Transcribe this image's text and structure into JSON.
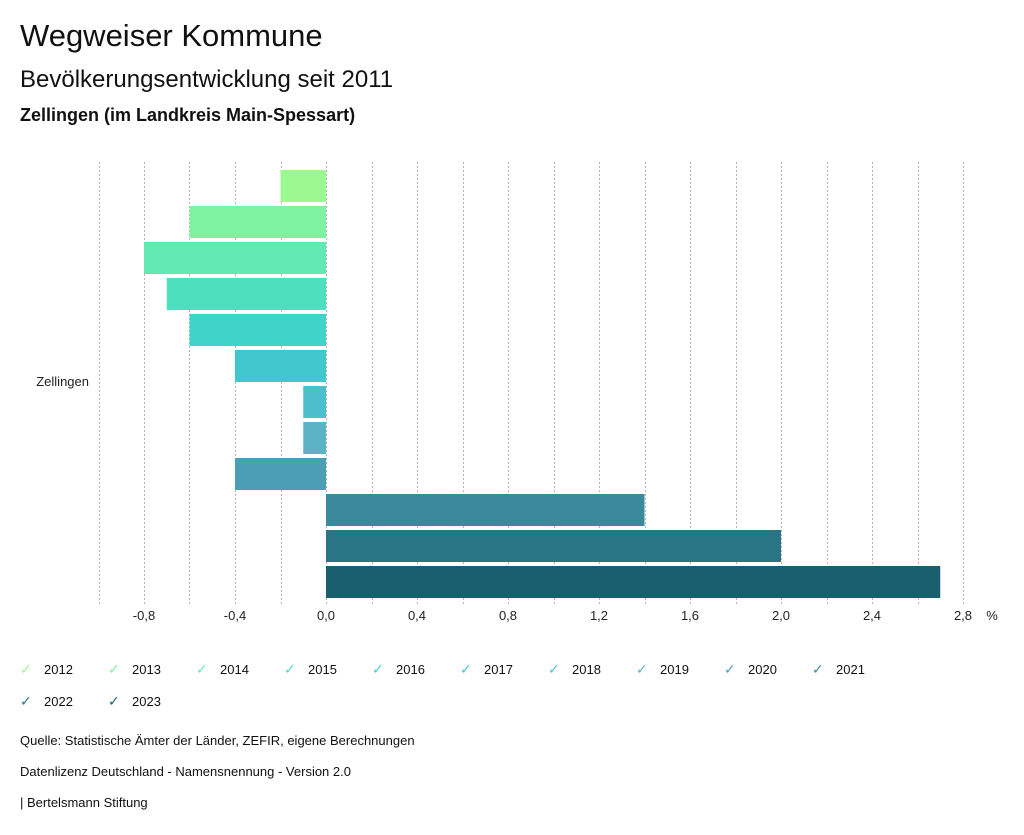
{
  "header": {
    "title": "Wegweiser Kommune",
    "subtitle": "Bevölkerungsentwicklung seit 2011",
    "region": "Zellingen (im Landkreis Main-Spessart)"
  },
  "chart_data": {
    "type": "bar",
    "orientation": "horizontal",
    "category": "Zellingen",
    "unit": "%",
    "xlim": [
      -1.0,
      2.9
    ],
    "xticks": [
      -0.8,
      -0.4,
      0.0,
      0.4,
      0.8,
      1.2,
      1.6,
      2.0,
      2.4,
      2.8
    ],
    "xtick_labels": [
      "-0,8",
      "-0,4",
      "0,0",
      "0,4",
      "0,8",
      "1,2",
      "1,6",
      "2,0",
      "2,4",
      "2,8"
    ],
    "grid": "vertical dotted, every 0.2",
    "legend_position": "bottom",
    "series": [
      {
        "name": "2012",
        "value": -0.2,
        "color": "#9cf890"
      },
      {
        "name": "2013",
        "value": -0.6,
        "color": "#7ff2a2"
      },
      {
        "name": "2014",
        "value": -0.8,
        "color": "#61e9b1"
      },
      {
        "name": "2015",
        "value": -0.7,
        "color": "#4de0bf"
      },
      {
        "name": "2016",
        "value": -0.6,
        "color": "#40d4c8"
      },
      {
        "name": "2017",
        "value": -0.4,
        "color": "#40c8cc"
      },
      {
        "name": "2018",
        "value": -0.1,
        "color": "#4bbfcc"
      },
      {
        "name": "2019",
        "value": -0.1,
        "color": "#5cb3c6"
      },
      {
        "name": "2020",
        "value": -0.4,
        "color": "#4a9fb4"
      },
      {
        "name": "2021",
        "value": 1.4,
        "color": "#3b8a9b"
      },
      {
        "name": "2022",
        "value": 2.0,
        "color": "#2a7585"
      },
      {
        "name": "2023",
        "value": 2.7,
        "color": "#1a5f6e"
      }
    ]
  },
  "footer": {
    "source": "Quelle: Statistische Ämter der Länder, ZEFIR, eigene Berechnungen",
    "license": "Datenlizenz Deutschland - Namensnennung - Version 2.0",
    "publisher": "| Bertelsmann Stiftung"
  }
}
